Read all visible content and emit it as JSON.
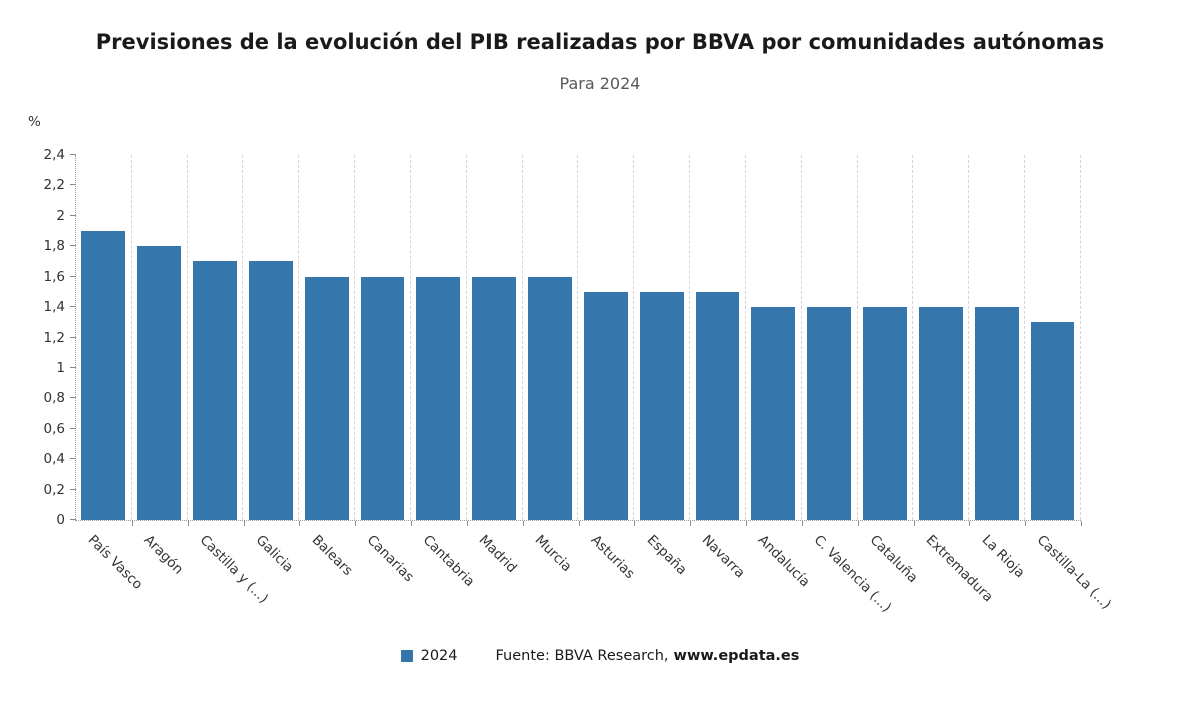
{
  "chart_data": {
    "type": "bar",
    "title": "Previsiones de la evolución del PIB realizadas por BBVA por comunidades autónomas",
    "subtitle": "Para 2024",
    "ylabel": "%",
    "xlabel": "",
    "ylim": [
      0,
      2.4
    ],
    "ytick_step": 0.2,
    "ytick_labels": [
      "0",
      "0,2",
      "0,4",
      "0,6",
      "0,8",
      "1",
      "1,2",
      "1,4",
      "1,6",
      "1,8",
      "2",
      "2,2",
      "2,4"
    ],
    "grid": "vertical-dashed",
    "legend_position": "bottom",
    "categories": [
      "País Vasco",
      "Aragón",
      "Castilla y (...)",
      "Galicia",
      "Balears",
      "Canarias",
      "Cantabria",
      "Madrid",
      "Murcia",
      "Asturias",
      "España",
      "Navarra",
      "Andalucía",
      "C. Valencia (...)",
      "Cataluña",
      "Extremadura",
      "La Rioja",
      "Castilla-La (...)"
    ],
    "series": [
      {
        "name": "2024",
        "values": [
          1.9,
          1.8,
          1.7,
          1.7,
          1.6,
          1.6,
          1.6,
          1.6,
          1.6,
          1.5,
          1.5,
          1.5,
          1.4,
          1.4,
          1.4,
          1.4,
          1.4,
          1.3
        ]
      }
    ]
  },
  "footer": {
    "legend_label": "2024",
    "source_prefix": "Fuente: BBVA Research,",
    "source_link": "www.epdata.es"
  },
  "colors": {
    "bar": "#3577ad",
    "grid": "#d4d4d4",
    "axis": "#999999"
  }
}
